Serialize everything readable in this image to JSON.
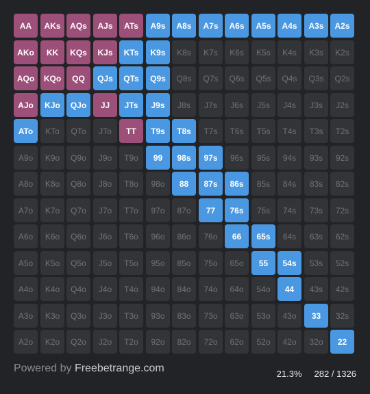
{
  "colors": {
    "raise": "#9c4f78",
    "call": "#4a98e1",
    "fold": "#323438",
    "background": "#212326"
  },
  "grid": {
    "rows": [
      [
        [
          "AA",
          "raise"
        ],
        [
          "AKs",
          "raise"
        ],
        [
          "AQs",
          "raise"
        ],
        [
          "AJs",
          "raise"
        ],
        [
          "ATs",
          "raise"
        ],
        [
          "A9s",
          "call"
        ],
        [
          "A8s",
          "call"
        ],
        [
          "A7s",
          "call"
        ],
        [
          "A6s",
          "call"
        ],
        [
          "A5s",
          "call"
        ],
        [
          "A4s",
          "call"
        ],
        [
          "A3s",
          "call"
        ],
        [
          "A2s",
          "call"
        ]
      ],
      [
        [
          "AKo",
          "raise"
        ],
        [
          "KK",
          "raise"
        ],
        [
          "KQs",
          "raise"
        ],
        [
          "KJs",
          "raise"
        ],
        [
          "KTs",
          "call"
        ],
        [
          "K9s",
          "call"
        ],
        [
          "K8s",
          "fold"
        ],
        [
          "K7s",
          "fold"
        ],
        [
          "K6s",
          "fold"
        ],
        [
          "K5s",
          "fold"
        ],
        [
          "K4s",
          "fold"
        ],
        [
          "K3s",
          "fold"
        ],
        [
          "K2s",
          "fold"
        ]
      ],
      [
        [
          "AQo",
          "raise"
        ],
        [
          "KQo",
          "raise"
        ],
        [
          "QQ",
          "raise"
        ],
        [
          "QJs",
          "call"
        ],
        [
          "QTs",
          "call"
        ],
        [
          "Q9s",
          "call"
        ],
        [
          "Q8s",
          "fold"
        ],
        [
          "Q7s",
          "fold"
        ],
        [
          "Q6s",
          "fold"
        ],
        [
          "Q5s",
          "fold"
        ],
        [
          "Q4s",
          "fold"
        ],
        [
          "Q3s",
          "fold"
        ],
        [
          "Q2s",
          "fold"
        ]
      ],
      [
        [
          "AJo",
          "raise"
        ],
        [
          "KJo",
          "call"
        ],
        [
          "QJo",
          "call"
        ],
        [
          "JJ",
          "raise"
        ],
        [
          "JTs",
          "call"
        ],
        [
          "J9s",
          "call"
        ],
        [
          "J8s",
          "fold"
        ],
        [
          "J7s",
          "fold"
        ],
        [
          "J6s",
          "fold"
        ],
        [
          "J5s",
          "fold"
        ],
        [
          "J4s",
          "fold"
        ],
        [
          "J3s",
          "fold"
        ],
        [
          "J2s",
          "fold"
        ]
      ],
      [
        [
          "ATo",
          "call"
        ],
        [
          "KTo",
          "fold"
        ],
        [
          "QTo",
          "fold"
        ],
        [
          "JTo",
          "fold"
        ],
        [
          "TT",
          "raise"
        ],
        [
          "T9s",
          "call"
        ],
        [
          "T8s",
          "call"
        ],
        [
          "T7s",
          "fold"
        ],
        [
          "T6s",
          "fold"
        ],
        [
          "T5s",
          "fold"
        ],
        [
          "T4s",
          "fold"
        ],
        [
          "T3s",
          "fold"
        ],
        [
          "T2s",
          "fold"
        ]
      ],
      [
        [
          "A9o",
          "fold"
        ],
        [
          "K9o",
          "fold"
        ],
        [
          "Q9o",
          "fold"
        ],
        [
          "J9o",
          "fold"
        ],
        [
          "T9o",
          "fold"
        ],
        [
          "99",
          "call"
        ],
        [
          "98s",
          "call"
        ],
        [
          "97s",
          "call"
        ],
        [
          "96s",
          "fold"
        ],
        [
          "95s",
          "fold"
        ],
        [
          "94s",
          "fold"
        ],
        [
          "93s",
          "fold"
        ],
        [
          "92s",
          "fold"
        ]
      ],
      [
        [
          "A8o",
          "fold"
        ],
        [
          "K8o",
          "fold"
        ],
        [
          "Q8o",
          "fold"
        ],
        [
          "J8o",
          "fold"
        ],
        [
          "T8o",
          "fold"
        ],
        [
          "98o",
          "fold"
        ],
        [
          "88",
          "call"
        ],
        [
          "87s",
          "call"
        ],
        [
          "86s",
          "call"
        ],
        [
          "85s",
          "fold"
        ],
        [
          "84s",
          "fold"
        ],
        [
          "83s",
          "fold"
        ],
        [
          "82s",
          "fold"
        ]
      ],
      [
        [
          "A7o",
          "fold"
        ],
        [
          "K7o",
          "fold"
        ],
        [
          "Q7o",
          "fold"
        ],
        [
          "J7o",
          "fold"
        ],
        [
          "T7o",
          "fold"
        ],
        [
          "97o",
          "fold"
        ],
        [
          "87o",
          "fold"
        ],
        [
          "77",
          "call"
        ],
        [
          "76s",
          "call"
        ],
        [
          "75s",
          "fold"
        ],
        [
          "74s",
          "fold"
        ],
        [
          "73s",
          "fold"
        ],
        [
          "72s",
          "fold"
        ]
      ],
      [
        [
          "A6o",
          "fold"
        ],
        [
          "K6o",
          "fold"
        ],
        [
          "Q6o",
          "fold"
        ],
        [
          "J6o",
          "fold"
        ],
        [
          "T6o",
          "fold"
        ],
        [
          "96o",
          "fold"
        ],
        [
          "86o",
          "fold"
        ],
        [
          "76o",
          "fold"
        ],
        [
          "66",
          "call"
        ],
        [
          "65s",
          "call"
        ],
        [
          "64s",
          "fold"
        ],
        [
          "63s",
          "fold"
        ],
        [
          "62s",
          "fold"
        ]
      ],
      [
        [
          "A5o",
          "fold"
        ],
        [
          "K5o",
          "fold"
        ],
        [
          "Q5o",
          "fold"
        ],
        [
          "J5o",
          "fold"
        ],
        [
          "T5o",
          "fold"
        ],
        [
          "95o",
          "fold"
        ],
        [
          "85o",
          "fold"
        ],
        [
          "75o",
          "fold"
        ],
        [
          "65o",
          "fold"
        ],
        [
          "55",
          "call"
        ],
        [
          "54s",
          "call"
        ],
        [
          "53s",
          "fold"
        ],
        [
          "52s",
          "fold"
        ]
      ],
      [
        [
          "A4o",
          "fold"
        ],
        [
          "K4o",
          "fold"
        ],
        [
          "Q4o",
          "fold"
        ],
        [
          "J4o",
          "fold"
        ],
        [
          "T4o",
          "fold"
        ],
        [
          "94o",
          "fold"
        ],
        [
          "84o",
          "fold"
        ],
        [
          "74o",
          "fold"
        ],
        [
          "64o",
          "fold"
        ],
        [
          "54o",
          "fold"
        ],
        [
          "44",
          "call"
        ],
        [
          "43s",
          "fold"
        ],
        [
          "42s",
          "fold"
        ]
      ],
      [
        [
          "A3o",
          "fold"
        ],
        [
          "K3o",
          "fold"
        ],
        [
          "Q3o",
          "fold"
        ],
        [
          "J3o",
          "fold"
        ],
        [
          "T3o",
          "fold"
        ],
        [
          "93o",
          "fold"
        ],
        [
          "83o",
          "fold"
        ],
        [
          "73o",
          "fold"
        ],
        [
          "63o",
          "fold"
        ],
        [
          "53o",
          "fold"
        ],
        [
          "43o",
          "fold"
        ],
        [
          "33",
          "call"
        ],
        [
          "32s",
          "fold"
        ]
      ],
      [
        [
          "A2o",
          "fold"
        ],
        [
          "K2o",
          "fold"
        ],
        [
          "Q2o",
          "fold"
        ],
        [
          "J2o",
          "fold"
        ],
        [
          "T2o",
          "fold"
        ],
        [
          "92o",
          "fold"
        ],
        [
          "82o",
          "fold"
        ],
        [
          "72o",
          "fold"
        ],
        [
          "62o",
          "fold"
        ],
        [
          "52o",
          "fold"
        ],
        [
          "42o",
          "fold"
        ],
        [
          "32o",
          "fold"
        ],
        [
          "22",
          "call"
        ]
      ]
    ]
  },
  "footer": {
    "powered_prefix": "Powered by",
    "brand": "Freebetrange.com",
    "percent": "21.3%",
    "combos": "282 / 1326"
  }
}
